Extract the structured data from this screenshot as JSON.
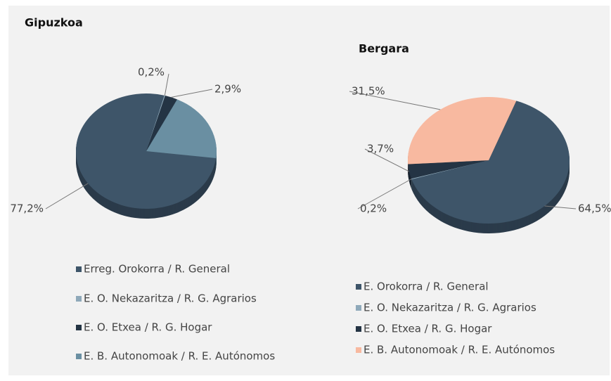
{
  "chart_data": [
    {
      "type": "pie",
      "title": "Gipuzkoa",
      "categories": [
        "Erreg. Orokorra / R. General",
        "E. O. Nekazaritza / R. G. Agrarios",
        "E. O. Etxea / R. G. Hogar",
        "E. B. Autonomoak / R. E. Autónomos"
      ],
      "values": [
        77.2,
        0.2,
        2.9,
        19.7
      ],
      "value_labels": [
        "77,2%",
        "0,2%",
        "2,9%",
        null
      ],
      "colors": [
        "#3e5569",
        "#8fa9ba",
        "#243444",
        "#6a8fa2"
      ]
    },
    {
      "type": "pie",
      "title": "Bergara",
      "categories": [
        "E. Orokorra / R. General",
        "E. O. Nekazaritza / R. G. Agrarios",
        "E. O. Etxea / R. G. Hogar",
        "E. B. Autonomoak / R. E. Autónomos"
      ],
      "values": [
        64.5,
        0.2,
        3.7,
        31.5
      ],
      "value_labels": [
        "64,5%",
        "0,2%",
        "3,7%",
        "31,5%"
      ],
      "colors": [
        "#3e5569",
        "#8fa9ba",
        "#243444",
        "#f8b9a0"
      ]
    }
  ]
}
